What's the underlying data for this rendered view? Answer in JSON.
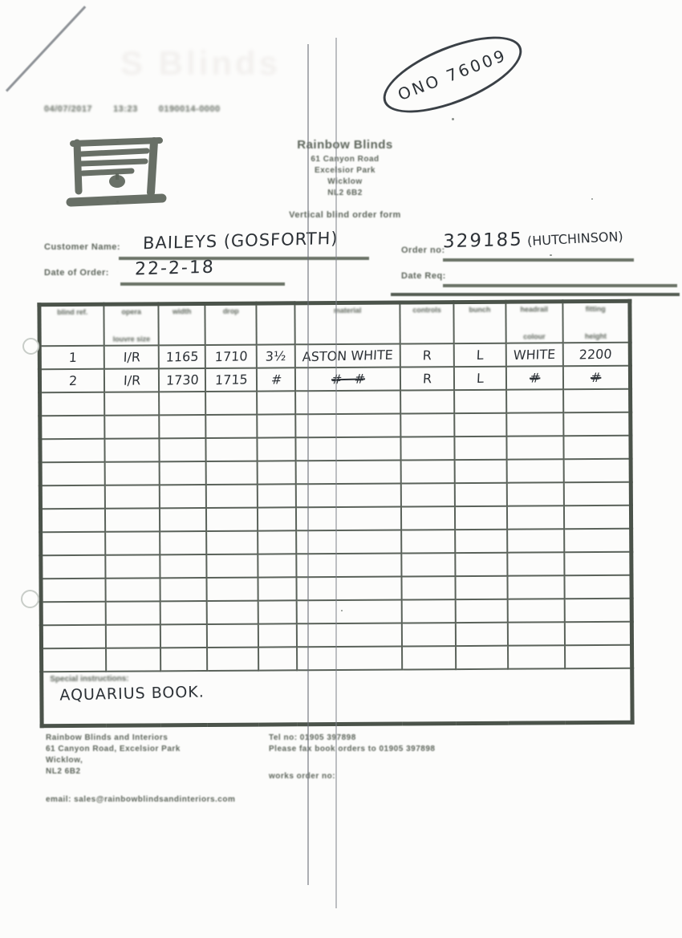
{
  "scan": {
    "fax_date": "04/07/2017",
    "fax_time": "13:23",
    "fax_number": "0190014-0000",
    "stamp_text": "ONO 76009",
    "ghost_text": "S Blinds"
  },
  "header": {
    "company_name": "Rainbow Blinds",
    "address_lines": [
      "61 Canyon Road",
      "Excelsior Park",
      "Wicklow",
      "NL2 6B2"
    ],
    "form_title": "Vertical blind order form"
  },
  "order_info": {
    "customer_label": "Customer Name:",
    "customer_value": "BAILEYS (GOSFORTH)",
    "date_label": "Date of Order:",
    "date_value": "22-2-18",
    "order_no_label": "Order no:",
    "order_no_value": "329185",
    "order_no_note": "(HUTCHINSON)",
    "date_req_label": "Date Req:"
  },
  "table": {
    "col_widths": [
      "11%",
      "9.2%",
      "7.9%",
      "8.7%",
      "6.5%",
      "17.8%",
      "9.1%",
      "8.8%",
      "9.6%",
      "11.4%"
    ],
    "headers": [
      {
        "line1": "blind ref.",
        "line2": ""
      },
      {
        "line1": "opera",
        "line2": "louvre size"
      },
      {
        "line1": "width",
        "line2": ""
      },
      {
        "line1": "drop",
        "line2": ""
      },
      {
        "line1": "",
        "line2": ""
      },
      {
        "line1": "material",
        "line2": ""
      },
      {
        "line1": "controls",
        "line2": ""
      },
      {
        "line1": "bunch",
        "line2": ""
      },
      {
        "line1": "headrail",
        "line2": "colour"
      },
      {
        "line1": "fitting",
        "line2": "height"
      }
    ],
    "rows": [
      [
        "1",
        "I/R",
        "1165",
        "1710",
        "3½",
        "ASTON WHITE",
        "R",
        "L",
        "WHITE",
        "2200"
      ],
      [
        "2",
        "I/R",
        "1730",
        "1715",
        "#",
        "#   #",
        "R",
        "L",
        "#",
        "#"
      ]
    ],
    "empty_row_count": 12,
    "special_label": "Special instructions:",
    "special_value": "AQUARIUS BOOK."
  },
  "footer": {
    "company_line": "Rainbow Blinds and Interiors",
    "address_line1": "61 Canyon Road, Excelsior Park",
    "address_line2": "Wicklow,",
    "address_line3": "NL2 6B2",
    "tel_line": "Tel no: 01905 397898",
    "fax_line": "Please fax book orders to 01905 397898",
    "works_order_label": "works order no:",
    "email_line": "email: sales@rainbowblindsandinteriors.com"
  }
}
